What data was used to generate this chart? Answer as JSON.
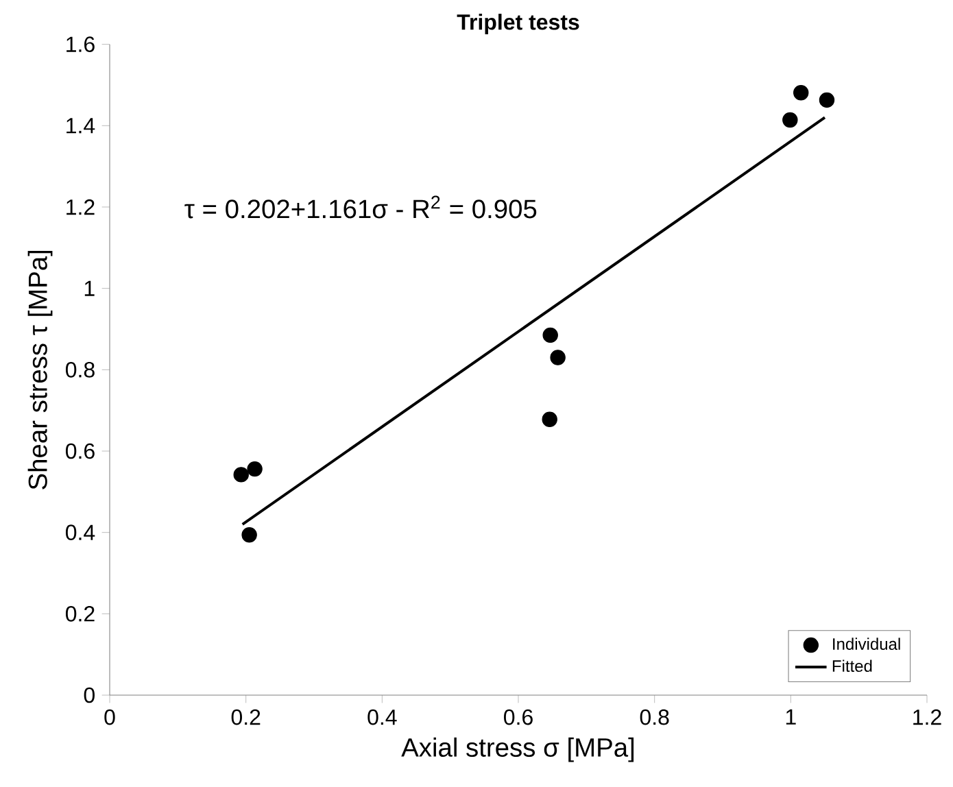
{
  "chart_data": {
    "type": "scatter",
    "title": "Triplet tests",
    "xlabel": "Axial stress σ [MPa]",
    "ylabel": "Shear stress τ [MPa]",
    "xlim": [
      0,
      1.2
    ],
    "xticks": [
      0,
      0.2,
      0.4,
      0.6,
      0.8,
      1,
      1.2
    ],
    "ylim": [
      0,
      1.6
    ],
    "yticks": [
      0,
      0.2,
      0.4,
      0.6,
      0.8,
      1,
      1.2,
      1.4,
      1.6
    ],
    "annotations": [
      "τ = 0.202+1.161σ  -  R$^{2}$ = 0.905"
    ],
    "legend": "bottom right",
    "grid": false,
    "series": [
      {
        "name": "Individual",
        "marker": "circle",
        "color": "#000000",
        "x": [
          0.193,
          0.213,
          0.205,
          0.647,
          0.658,
          0.646,
          1.015,
          1.053,
          0.999
        ],
        "values": [
          0.542,
          0.556,
          0.394,
          0.885,
          0.83,
          0.678,
          1.481,
          1.463,
          1.414
        ]
      },
      {
        "name": "Fitted",
        "type": "line",
        "marker": "none",
        "line_style": "solid",
        "color": "#000000",
        "x": [
          0.195,
          1.05
        ],
        "values": [
          0.42,
          1.42
        ]
      }
    ]
  }
}
